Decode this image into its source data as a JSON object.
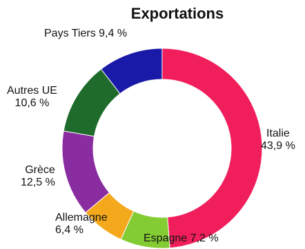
{
  "chart_data": {
    "type": "pie",
    "title": "Exportations",
    "donut": true,
    "slices": [
      {
        "label": "Italie",
        "value_label": "43,9 %",
        "value": 43.9,
        "color": "#f01e5a"
      },
      {
        "label": "Espagne",
        "value_label": "7,2 %",
        "value": 7.2,
        "color": "#84cc34"
      },
      {
        "label": "Allemagne",
        "value_label": "6,4 %",
        "value": 6.4,
        "color": "#f4a81c"
      },
      {
        "label": "Grèce",
        "value_label": "12,5 %",
        "value": 12.5,
        "color": "#8a2da0"
      },
      {
        "label": "Autres UE",
        "value_label": "10,6 %",
        "value": 10.6,
        "color": "#1f6b2c"
      },
      {
        "label": "Pays Tiers",
        "value_label": "9,4 %",
        "value": 9.4,
        "color": "#1a1aa8"
      }
    ]
  }
}
